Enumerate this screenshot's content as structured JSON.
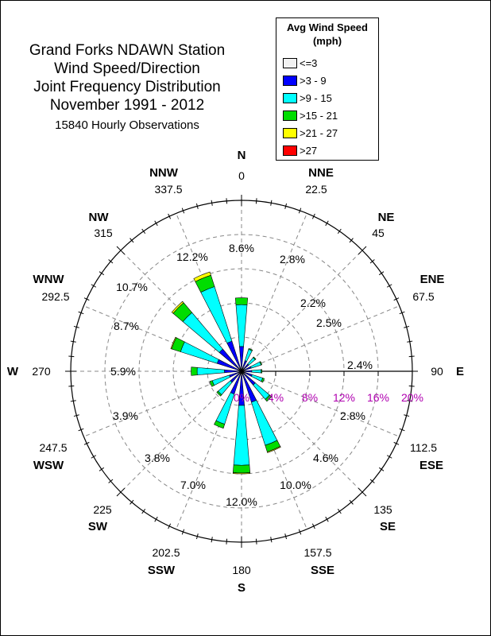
{
  "title_lines": [
    "Grand Forks NDAWN Station",
    "Wind Speed/Direction",
    "Joint Frequency Distribution",
    "November 1991 - 2012"
  ],
  "subtitle": "15840 Hourly Observations",
  "legend": {
    "title_line1": "Avg Wind Speed",
    "title_line2": "(mph)",
    "items": [
      {
        "label": "<=3",
        "color": "#f2f2f2"
      },
      {
        "label": ">3 - 9",
        "color": "#0000ff"
      },
      {
        "label": ">9 - 15",
        "color": "#00ffff"
      },
      {
        "label": ">15 - 21",
        "color": "#00dd00"
      },
      {
        "label": ">21 - 27",
        "color": "#ffff00"
      },
      {
        "label": ">27",
        "color": "#ff0000"
      }
    ]
  },
  "chart_data": {
    "type": "wind_rose",
    "radial_ticks": [
      "0%",
      "4%",
      "8%",
      "12%",
      "16%",
      "20%"
    ],
    "radial_max": 20,
    "tick_color": "#b000b0",
    "directions": [
      {
        "abbr": "N",
        "deg": "0",
        "total_label": "8.6%"
      },
      {
        "abbr": "NNE",
        "deg": "22.5",
        "total_label": "2.8%"
      },
      {
        "abbr": "NE",
        "deg": "45",
        "total_label": "2.2%"
      },
      {
        "abbr": "ENE",
        "deg": "67.5",
        "total_label": "2.5%"
      },
      {
        "abbr": "E",
        "deg": "90",
        "total_label": "2.4%"
      },
      {
        "abbr": "ESE",
        "deg": "112.5",
        "total_label": "2.8%"
      },
      {
        "abbr": "SE",
        "deg": "135",
        "total_label": "4.6%"
      },
      {
        "abbr": "SSE",
        "deg": "157.5",
        "total_label": "10.0%"
      },
      {
        "abbr": "S",
        "deg": "180",
        "total_label": "12.0%"
      },
      {
        "abbr": "SSW",
        "deg": "202.5",
        "total_label": "7.0%"
      },
      {
        "abbr": "SW",
        "deg": "225",
        "total_label": "3.8%"
      },
      {
        "abbr": "WSW",
        "deg": "247.5",
        "total_label": "3.9%"
      },
      {
        "abbr": "W",
        "deg": "270",
        "total_label": "5.9%"
      },
      {
        "abbr": "WNW",
        "deg": "292.5",
        "total_label": "8.7%"
      },
      {
        "abbr": "NW",
        "deg": "315",
        "total_label": "10.7%"
      },
      {
        "abbr": "NNW",
        "deg": "337.5",
        "total_label": "12.2%"
      }
    ],
    "speed_bins": [
      "<=3",
      ">3 - 9",
      ">9 - 15",
      ">15 - 21",
      ">21 - 27",
      ">27"
    ],
    "frequencies": [
      [
        0.0,
        2.9,
        4.9,
        0.8,
        0.0,
        0.0
      ],
      [
        0.0,
        1.3,
        1.4,
        0.1,
        0.0,
        0.0
      ],
      [
        0.0,
        1.1,
        1.0,
        0.1,
        0.0,
        0.0
      ],
      [
        0.0,
        1.2,
        1.2,
        0.1,
        0.0,
        0.0
      ],
      [
        0.0,
        1.2,
        1.1,
        0.1,
        0.0,
        0.0
      ],
      [
        0.0,
        1.3,
        1.3,
        0.2,
        0.0,
        0.0
      ],
      [
        0.0,
        2.1,
        2.2,
        0.3,
        0.0,
        0.0
      ],
      [
        0.0,
        3.8,
        5.3,
        0.8,
        0.1,
        0.0
      ],
      [
        0.0,
        4.0,
        7.0,
        0.9,
        0.1,
        0.0
      ],
      [
        0.0,
        2.8,
        3.7,
        0.5,
        0.0,
        0.0
      ],
      [
        0.0,
        1.7,
        1.9,
        0.2,
        0.0,
        0.0
      ],
      [
        0.0,
        1.5,
        2.1,
        0.3,
        0.0,
        0.0
      ],
      [
        0.0,
        2.0,
        3.2,
        0.7,
        0.0,
        0.0
      ],
      [
        0.0,
        3.0,
        4.5,
        1.1,
        0.1,
        0.0
      ],
      [
        0.0,
        3.4,
        5.6,
        1.5,
        0.2,
        0.0
      ],
      [
        0.0,
        3.7,
        6.7,
        1.4,
        0.4,
        0.0
      ]
    ]
  }
}
